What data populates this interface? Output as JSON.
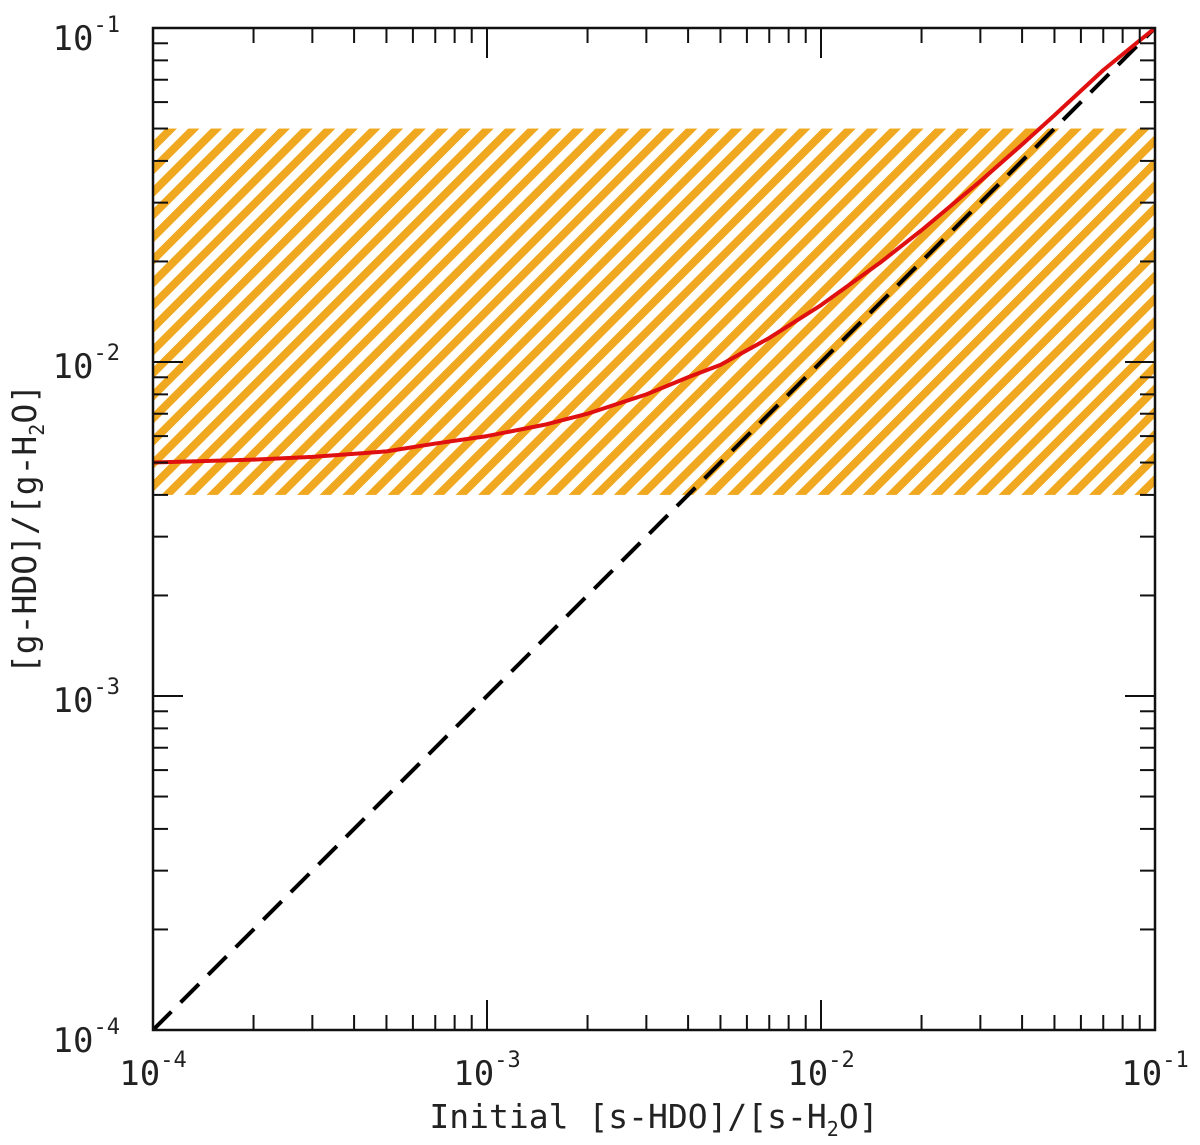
{
  "chart_data": {
    "type": "line",
    "title": "",
    "xlabel": {
      "prefix": "Initial [s-HDO]/[s-H",
      "sub": "2",
      "suffix": "O]"
    },
    "ylabel": {
      "prefix": "[g-HDO]/[g-H",
      "sub": "2",
      "suffix": "O]"
    },
    "xscale": "log",
    "yscale": "log",
    "xlim": [
      0.0001,
      0.1
    ],
    "ylim": [
      0.0001,
      0.1
    ],
    "grid": false,
    "x_ticks": [
      {
        "base": "10",
        "exp": "-4",
        "value": 0.0001
      },
      {
        "base": "10",
        "exp": "-3",
        "value": 0.001
      },
      {
        "base": "10",
        "exp": "-2",
        "value": 0.01
      },
      {
        "base": "10",
        "exp": "-1",
        "value": 0.1
      }
    ],
    "y_ticks": [
      {
        "base": "10",
        "exp": "-4",
        "value": 0.0001
      },
      {
        "base": "10",
        "exp": "-3",
        "value": 0.001
      },
      {
        "base": "10",
        "exp": "-2",
        "value": 0.01
      },
      {
        "base": "10",
        "exp": "-1",
        "value": 0.1
      }
    ],
    "band": {
      "y_range": [
        0.004,
        0.05
      ],
      "color": "#f0a820",
      "pattern": "diagonal-hatch"
    },
    "series": [
      {
        "style": "dashed",
        "color": "#000000",
        "x": [
          0.0001,
          0.1
        ],
        "y": [
          0.0001,
          0.1
        ]
      },
      {
        "style": "solid",
        "color": "#e01010",
        "x": [
          0.0001,
          0.0002,
          0.0003,
          0.0005,
          0.0007,
          0.001,
          0.0015,
          0.002,
          0.003,
          0.004,
          0.005,
          0.007,
          0.01,
          0.015,
          0.02,
          0.03,
          0.04,
          0.05,
          0.07,
          0.1
        ],
        "y": [
          0.005,
          0.0051,
          0.0052,
          0.0054,
          0.0057,
          0.006,
          0.0065,
          0.007,
          0.008,
          0.009,
          0.0098,
          0.0118,
          0.0148,
          0.0198,
          0.0248,
          0.0348,
          0.0448,
          0.0548,
          0.0748,
          0.1
        ]
      }
    ]
  }
}
